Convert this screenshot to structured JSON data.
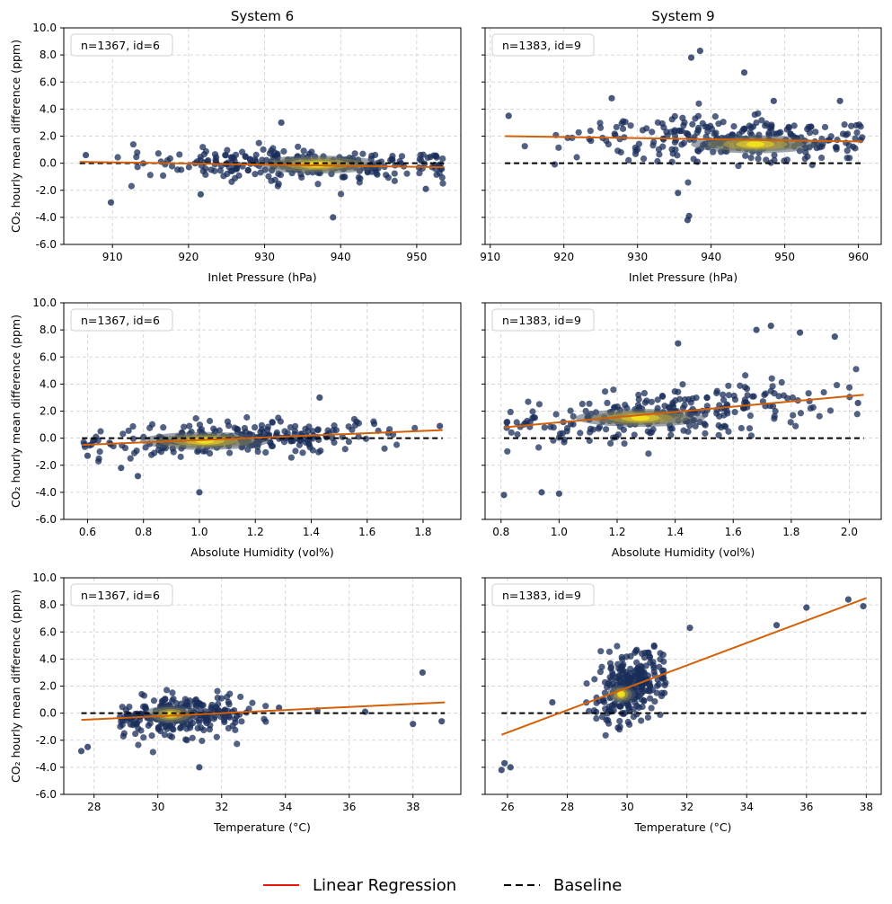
{
  "figure": {
    "legend": [
      {
        "label": "Linear Regression",
        "style": "solid",
        "color": "#e8170a"
      },
      {
        "label": "Baseline",
        "style": "dashed",
        "color": "#000000"
      }
    ],
    "colors": {
      "point": "#1a2e5a",
      "density_high": "#f2e11c",
      "regression": "#d4600a",
      "baseline": "#000000",
      "grid": "#cccccc"
    }
  },
  "chart_data": [
    {
      "type": "scatter",
      "title": "System 6",
      "xlabel": "Inlet Pressure (hPa)",
      "ylabel": "CO₂ hourly mean difference (ppm)",
      "annotation": "n=1367, id=6",
      "xlim": [
        903.6,
        955.8
      ],
      "ylim": [
        -6,
        10
      ],
      "xticks": [
        910,
        920,
        930,
        940,
        950
      ],
      "xtick_labels": [
        "910",
        "920",
        "930",
        "940",
        "950"
      ],
      "yticks": [
        -6,
        -4,
        -2,
        0,
        2,
        4,
        6,
        8,
        10
      ],
      "ytick_labels": [
        "-6.0",
        "-4.0",
        "-2.0",
        "0.0",
        "2.0",
        "4.0",
        "6.0",
        "8.0",
        "10.0"
      ],
      "regression": {
        "x": [
          905.7,
          953.6
        ],
        "y": [
          0.1,
          -0.3
        ]
      },
      "baseline": {
        "x": [
          905.7,
          953.6
        ],
        "y": 0
      },
      "cluster": {
        "x_center": 935,
        "x_min": 905.7,
        "x_max": 953.6,
        "y_center": 0.0,
        "y_spread": 0.6,
        "hot_x": 937,
        "hot_y": -0.1
      },
      "outliers": [
        [
          909.8,
          -2.9
        ],
        [
          932.2,
          3.0
        ],
        [
          939.0,
          -4.0
        ],
        [
          906.5,
          0.6
        ],
        [
          951.2,
          -1.9
        ],
        [
          921.6,
          -2.3
        ]
      ]
    },
    {
      "type": "scatter",
      "title": "System 9",
      "xlabel": "Inlet Pressure (hPa)",
      "ylabel": "",
      "annotation": "n=1383, id=9",
      "xlim": [
        909.3,
        963.1
      ],
      "ylim": [
        -6,
        10
      ],
      "xticks": [
        910,
        920,
        930,
        940,
        950,
        960
      ],
      "xtick_labels": [
        "910",
        "920",
        "930",
        "940",
        "950",
        "960"
      ],
      "yticks": [
        -6,
        -4,
        -2,
        0,
        2,
        4,
        6,
        8,
        10
      ],
      "ytick_labels": [
        "-6.0",
        "-4.0",
        "-2.0",
        "0.0",
        "2.0",
        "4.0",
        "6.0",
        "8.0",
        "10.0"
      ],
      "regression": {
        "x": [
          912.0,
          960.6
        ],
        "y": [
          2.0,
          1.6
        ]
      },
      "baseline": {
        "x": [
          912.0,
          960.6
        ],
        "y": 0
      },
      "cluster": {
        "x_center": 943,
        "x_min": 912,
        "x_max": 960.6,
        "y_center": 1.6,
        "y_spread": 0.8,
        "hot_x": 946,
        "hot_y": 1.4
      },
      "outliers": [
        [
          938.5,
          8.3
        ],
        [
          937.3,
          7.8
        ],
        [
          944.5,
          6.7
        ],
        [
          936.8,
          -4.2
        ],
        [
          937.0,
          -3.9
        ],
        [
          948.5,
          4.6
        ],
        [
          926.5,
          4.8
        ],
        [
          957.5,
          4.6
        ],
        [
          912.5,
          3.5
        ],
        [
          935.5,
          -2.2
        ]
      ]
    },
    {
      "type": "scatter",
      "title": "",
      "xlabel": "Absolute Humidity (vol%)",
      "ylabel": "CO₂ hourly mean difference (ppm)",
      "annotation": "n=1367, id=6",
      "xlim": [
        0.515,
        1.935
      ],
      "ylim": [
        -6,
        10
      ],
      "xticks": [
        0.6,
        0.8,
        1.0,
        1.2,
        1.4,
        1.6,
        1.8
      ],
      "xtick_labels": [
        "0.6",
        "0.8",
        "1.0",
        "1.2",
        "1.4",
        "1.6",
        "1.8"
      ],
      "yticks": [
        -6,
        -4,
        -2,
        0,
        2,
        4,
        6,
        8,
        10
      ],
      "ytick_labels": [
        "-6.0",
        "-4.0",
        "-2.0",
        "0.0",
        "2.0",
        "4.0",
        "6.0",
        "8.0",
        "10.0"
      ],
      "regression": {
        "x": [
          0.58,
          1.87
        ],
        "y": [
          -0.5,
          0.6
        ]
      },
      "baseline": {
        "x": [
          0.58,
          1.87
        ],
        "y": 0
      },
      "cluster": {
        "x_center": 1.1,
        "x_min": 0.58,
        "x_max": 1.87,
        "y_center": -0.1,
        "y_spread": 0.6,
        "hot_x": 1.02,
        "hot_y": -0.2
      },
      "outliers": [
        [
          1.0,
          -4.0
        ],
        [
          1.43,
          3.0
        ],
        [
          0.6,
          -1.3
        ],
        [
          0.72,
          -2.2
        ],
        [
          1.86,
          0.9
        ],
        [
          0.78,
          -2.8
        ]
      ]
    },
    {
      "type": "scatter",
      "title": "",
      "xlabel": "Absolute Humidity (vol%)",
      "ylabel": "",
      "annotation": "n=1383, id=9",
      "xlim": [
        0.745,
        2.11
      ],
      "ylim": [
        -6,
        10
      ],
      "xticks": [
        0.8,
        1.0,
        1.2,
        1.4,
        1.6,
        1.8,
        2.0
      ],
      "xtick_labels": [
        "0.8",
        "1.0",
        "1.2",
        "1.4",
        "1.6",
        "1.8",
        "2.0"
      ],
      "yticks": [
        -6,
        -4,
        -2,
        0,
        2,
        4,
        6,
        8,
        10
      ],
      "ytick_labels": [
        "-6.0",
        "-4.0",
        "-2.0",
        "0.0",
        "2.0",
        "4.0",
        "6.0",
        "8.0",
        "10.0"
      ],
      "regression": {
        "x": [
          0.81,
          2.05
        ],
        "y": [
          0.8,
          3.2
        ]
      },
      "baseline": {
        "x": [
          0.81,
          2.05
        ],
        "y": 0
      },
      "cluster": {
        "x_center": 1.35,
        "x_min": 0.81,
        "x_max": 2.05,
        "y_center": 1.6,
        "y_spread": 0.9,
        "hot_x": 1.28,
        "hot_y": 1.5
      },
      "outliers": [
        [
          0.81,
          -4.2
        ],
        [
          1.73,
          8.3
        ],
        [
          1.68,
          8.0
        ],
        [
          1.95,
          7.5
        ],
        [
          1.0,
          -4.1
        ],
        [
          0.94,
          -4.0
        ],
        [
          1.41,
          7.0
        ],
        [
          2.03,
          2.6
        ],
        [
          1.83,
          7.8
        ]
      ]
    },
    {
      "type": "scatter",
      "title": "",
      "xlabel": "Temperature (°C)",
      "ylabel": "CO₂ hourly mean difference (ppm)",
      "annotation": "n=1367, id=6",
      "xlim": [
        27.05,
        39.5
      ],
      "ylim": [
        -6,
        10
      ],
      "xticks": [
        28,
        30,
        32,
        34,
        36,
        38
      ],
      "xtick_labels": [
        "28",
        "30",
        "32",
        "34",
        "36",
        "38"
      ],
      "yticks": [
        -6,
        -4,
        -2,
        0,
        2,
        4,
        6,
        8,
        10
      ],
      "ytick_labels": [
        "-6.0",
        "-4.0",
        "-2.0",
        "0.0",
        "2.0",
        "4.0",
        "6.0",
        "8.0",
        "10.0"
      ],
      "regression": {
        "x": [
          27.6,
          39.0
        ],
        "y": [
          -0.5,
          0.8
        ]
      },
      "baseline": {
        "x": [
          27.6,
          39.0
        ],
        "y": 0
      },
      "cluster": {
        "x_center": 30.7,
        "x_min": 28.8,
        "x_max": 33.5,
        "y_center": 0.0,
        "y_spread": 0.7,
        "hot_x": 30.4,
        "hot_y": -0.1
      },
      "outliers": [
        [
          38.3,
          3.0
        ],
        [
          31.3,
          -4.0
        ],
        [
          27.6,
          -2.8
        ],
        [
          27.8,
          -2.5
        ],
        [
          38.9,
          -0.6
        ],
        [
          38.0,
          -0.8
        ],
        [
          35.0,
          0.2
        ],
        [
          36.5,
          0.1
        ],
        [
          33.8,
          0.4
        ]
      ]
    },
    {
      "type": "scatter",
      "title": "",
      "xlabel": "Temperature (°C)",
      "ylabel": "",
      "annotation": "n=1383, id=9",
      "xlim": [
        25.25,
        38.5
      ],
      "ylim": [
        -6,
        10
      ],
      "xticks": [
        26,
        28,
        30,
        32,
        34,
        36,
        38
      ],
      "xtick_labels": [
        "26",
        "28",
        "30",
        "32",
        "34",
        "36",
        "38"
      ],
      "yticks": [
        -6,
        -4,
        -2,
        0,
        2,
        4,
        6,
        8,
        10
      ],
      "ytick_labels": [
        "-6.0",
        "-4.0",
        "-2.0",
        "0.0",
        "2.0",
        "4.0",
        "6.0",
        "8.0",
        "10.0"
      ],
      "regression": {
        "x": [
          25.8,
          38.0
        ],
        "y": [
          -1.6,
          8.5
        ]
      },
      "baseline": {
        "x": [
          25.8,
          38.0
        ],
        "y": 0
      },
      "cluster": {
        "x_center": 30.0,
        "x_min": 28.6,
        "x_max": 31.3,
        "y_center": 1.6,
        "y_spread": 1.2,
        "hot_x": 29.8,
        "hot_y": 1.4
      },
      "outliers": [
        [
          37.4,
          8.4
        ],
        [
          37.9,
          7.9
        ],
        [
          25.8,
          -4.2
        ],
        [
          26.1,
          -4.0
        ],
        [
          25.9,
          -3.7
        ],
        [
          36.0,
          7.8
        ],
        [
          35.0,
          6.5
        ],
        [
          32.1,
          6.3
        ],
        [
          27.5,
          0.8
        ]
      ]
    }
  ]
}
